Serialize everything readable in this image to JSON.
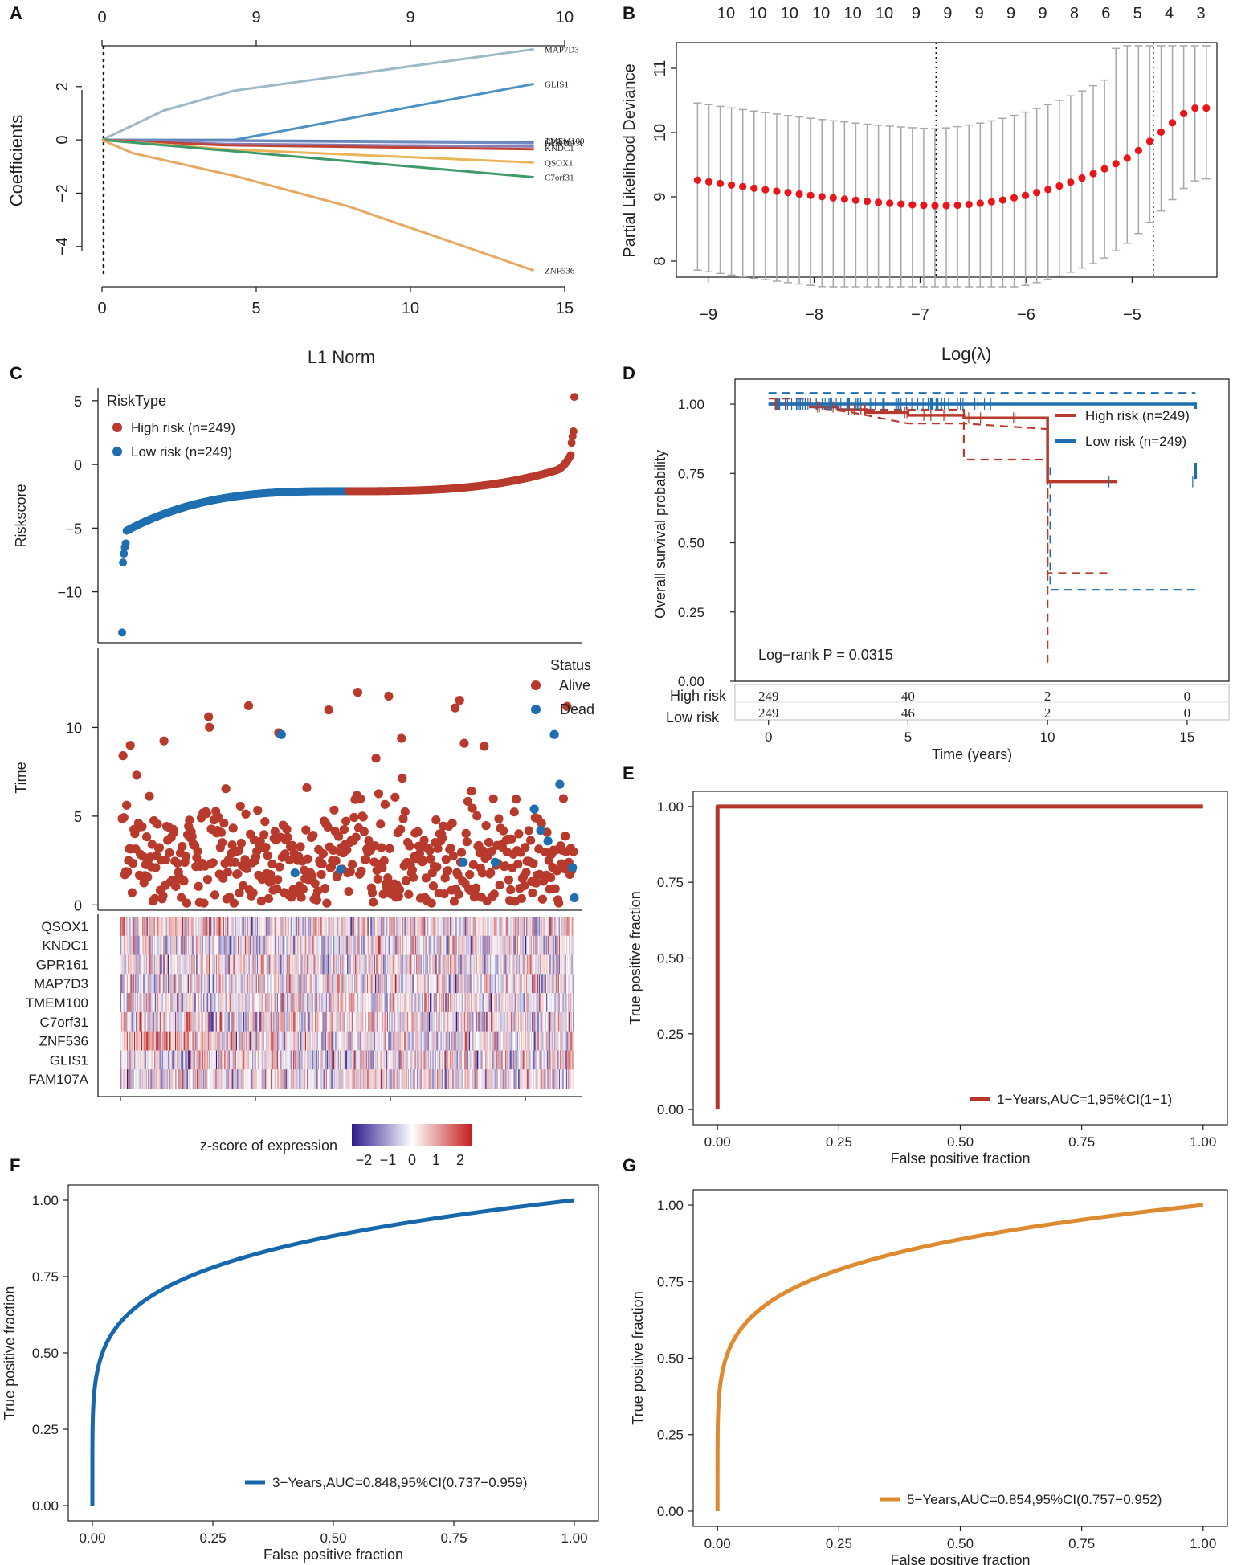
{
  "figure": {
    "panel_labels": [
      "A",
      "B",
      "C",
      "D",
      "E",
      "F",
      "G"
    ]
  },
  "colors": {
    "high_risk": "#b83a2c",
    "low_risk": "#1f6fb0",
    "auc1": "#b5362b",
    "auc3": "#1767aa",
    "auc5": "#dd8a30",
    "cv_point": "#e8161b",
    "cv_bar": "#a8a8a8",
    "heat_low": "#2b1b8c",
    "heat_mid": "#ffffff",
    "heat_high": "#c41e1e"
  },
  "chart_data": [
    {
      "panel": "A",
      "type": "line",
      "title": "",
      "xlabel": "L1 Norm",
      "ylabel": "Coefficients",
      "xlim": [
        0,
        15
      ],
      "ylim": [
        -5,
        3.5
      ],
      "x_ticks": [
        "0",
        "5",
        "10",
        "15"
      ],
      "y_ticks": [
        "−4",
        "−2",
        "0",
        "2"
      ],
      "top_ticks": [
        "0",
        "9",
        "9",
        "10"
      ],
      "series": [
        {
          "name": "MAP7D3",
          "color": "#9dbac6",
          "x": [
            0,
            2,
            4.3,
            14
          ],
          "y": [
            0,
            1.1,
            1.85,
            3.4
          ]
        },
        {
          "name": "GLIS1",
          "color": "#4f92c2",
          "x": [
            0,
            4.3,
            14
          ],
          "y": [
            0,
            0,
            2.1
          ]
        },
        {
          "name": "GPR161",
          "color": "#4a6fb0",
          "x": [
            0,
            14
          ],
          "y": [
            0,
            -0.08
          ]
        },
        {
          "name": "TMEM100",
          "color": "#6f8cc0",
          "x": [
            0,
            14
          ],
          "y": [
            0,
            -0.12
          ]
        },
        {
          "name": "FAM107A",
          "color": "#8b7db3",
          "x": [
            0,
            4,
            14
          ],
          "y": [
            0,
            -0.15,
            -0.25
          ]
        },
        {
          "name": "KNDC1",
          "color": "#c04436",
          "x": [
            0,
            4,
            14
          ],
          "y": [
            0,
            -0.2,
            -0.35
          ]
        },
        {
          "name": "QSOX1",
          "color": "#eab55a",
          "x": [
            0,
            4,
            14
          ],
          "y": [
            0,
            -0.35,
            -0.85
          ]
        },
        {
          "name": "C7orf31",
          "color": "#3e9a6a",
          "x": [
            0,
            4,
            14
          ],
          "y": [
            0,
            -0.4,
            -1.4
          ]
        },
        {
          "name": "ZNF536",
          "color": "#e6a862",
          "x": [
            0,
            1,
            4.3,
            8,
            14
          ],
          "y": [
            0,
            -0.5,
            -1.35,
            -2.5,
            -4.9
          ]
        }
      ],
      "line_labels": [
        {
          "text": "MAP7D3",
          "y": 3.4
        },
        {
          "text": "GLIS1",
          "y": 2.1
        },
        {
          "text": "TMEM100",
          "y": -0.02
        },
        {
          "text": "GPR161",
          "y": -0.07
        },
        {
          "text": "FAM107A",
          "y": -0.12
        },
        {
          "text": "KNDC1",
          "y": -0.3
        },
        {
          "text": "QSOX1",
          "y": -0.85
        },
        {
          "text": "C7orf31",
          "y": -1.4
        },
        {
          "text": "ZNF536",
          "y": -4.9
        }
      ],
      "vline_x": 0.05
    },
    {
      "panel": "B",
      "type": "scatter",
      "title": "",
      "xlabel": "Log(λ)",
      "ylabel": "Partial Likelihood Deviance",
      "xlim": [
        -9.3,
        -4.2
      ],
      "ylim": [
        7.75,
        11.4
      ],
      "x_ticks": [
        "−9",
        "−8",
        "−7",
        "−6",
        "−5"
      ],
      "y_ticks": [
        "8",
        "9",
        "10",
        "11"
      ],
      "top_ticks": [
        "10",
        "10",
        "10",
        "10",
        "10",
        "10",
        "9",
        "9",
        "9",
        "9",
        "9",
        "8",
        "6",
        "5",
        "4",
        "3"
      ],
      "n_points": 46,
      "log_lambda_range": [
        -9.1,
        -4.3
      ],
      "min_log_lambda": -6.85,
      "min_deviance": 8.86,
      "lambda_1se": -4.8,
      "vlines": [
        -6.85,
        -4.8
      ]
    },
    {
      "panel": "C-top",
      "type": "scatter",
      "title": "",
      "xlabel": "",
      "ylabel": "Riskscore",
      "ylim": [
        -14,
        6
      ],
      "y_ticks": [
        "5",
        "0",
        "−5",
        "−10"
      ],
      "legend_title": "RiskType",
      "legend": [
        "High risk (n=249)",
        "Low risk (n=249)"
      ],
      "n": 498,
      "min_score": -13.2,
      "max_score": 5.3,
      "cutoff_index": 249
    },
    {
      "panel": "C-mid",
      "type": "scatter",
      "title": "",
      "xlabel": "",
      "ylabel": "Time",
      "ylim": [
        -0.3,
        14.5
      ],
      "y_ticks": [
        "0",
        "5",
        "10"
      ],
      "legend_title": "Status",
      "legend": [
        "Alive",
        "Dead"
      ],
      "n": 498,
      "dead_points": [
        {
          "i": 175,
          "t": 9.6
        },
        {
          "i": 190,
          "t": 1.8
        },
        {
          "i": 240,
          "t": 2.0
        },
        {
          "i": 375,
          "t": 2.4
        },
        {
          "i": 410,
          "t": 2.4
        },
        {
          "i": 453,
          "t": 5.4
        },
        {
          "i": 460,
          "t": 4.2
        },
        {
          "i": 468,
          "t": 3.6
        },
        {
          "i": 475,
          "t": 9.6
        },
        {
          "i": 481,
          "t": 6.8
        },
        {
          "i": 495,
          "t": 2.1
        },
        {
          "i": 497,
          "t": 0.4
        }
      ]
    },
    {
      "panel": "C-heatmap",
      "type": "heatmap",
      "genes": [
        "QSOX1",
        "KNDC1",
        "GPR161",
        "MAP7D3",
        "TMEM100",
        "C7orf31",
        "ZNF536",
        "GLIS1",
        "FAM107A"
      ],
      "legend_title": "z-score of expression",
      "scale_labels": [
        "−2",
        "−1",
        "0",
        "1",
        "2"
      ],
      "scale_range": [
        -2.5,
        2.5
      ],
      "n_samples": 498
    },
    {
      "panel": "D",
      "type": "line",
      "title": "",
      "xlabel": "Time (years)",
      "ylabel": "Overall survival probability",
      "xlim": [
        -1.2,
        16.5
      ],
      "ylim": [
        0,
        1.09
      ],
      "x_ticks": [
        "0",
        "5",
        "10",
        "15"
      ],
      "y_ticks": [
        "0.00",
        "0.25",
        "0.50",
        "0.75",
        "1.00"
      ],
      "annotation": "Log−rank P = 0.0315",
      "series": [
        {
          "name": "High risk (n=249)",
          "x": [
            0,
            1.5,
            2.5,
            3.5,
            5,
            7,
            10,
            12.5
          ],
          "y": [
            1.0,
            0.99,
            0.98,
            0.97,
            0.96,
            0.95,
            0.72,
            0.72
          ]
        },
        {
          "name": "Low risk (n=249)",
          "x": [
            0,
            10,
            15.3
          ],
          "y": [
            1.0,
            1.0,
            0.73
          ]
        }
      ],
      "risk_table": {
        "rows": [
          "High risk",
          "Low risk"
        ],
        "times": [
          "0",
          "5",
          "10",
          "15"
        ],
        "high": [
          "249",
          "40",
          "2",
          "0"
        ],
        "low": [
          "249",
          "46",
          "2",
          "0"
        ]
      }
    },
    {
      "panel": "E",
      "type": "line",
      "title": "",
      "xlabel": "False positive fraction",
      "ylabel": "True positive fraction",
      "xlim": [
        -0.05,
        1.05
      ],
      "ylim": [
        -0.05,
        1.05
      ],
      "x_ticks": [
        "0.00",
        "0.25",
        "0.50",
        "0.75",
        "1.00"
      ],
      "y_ticks": [
        "0.00",
        "0.25",
        "0.50",
        "0.75",
        "1.00"
      ],
      "legend": "1−Years,AUC=1,95%CI(1−1)",
      "auc": 1.0,
      "x": [
        0,
        0,
        1
      ],
      "y": [
        0,
        1,
        1
      ]
    },
    {
      "panel": "F",
      "type": "line",
      "title": "",
      "xlabel": "False positive fraction",
      "ylabel": "True positive fraction",
      "xlim": [
        -0.05,
        1.05
      ],
      "ylim": [
        -0.05,
        1.05
      ],
      "x_ticks": [
        "0.00",
        "0.25",
        "0.50",
        "0.75",
        "1.00"
      ],
      "y_ticks": [
        "0.00",
        "0.25",
        "0.50",
        "0.75",
        "1.00"
      ],
      "legend": "3−Years,AUC=0.848,95%CI(0.737−0.959)",
      "auc": 0.848
    },
    {
      "panel": "G",
      "type": "line",
      "title": "",
      "xlabel": "False positive fraction",
      "ylabel": "True positive fraction",
      "xlim": [
        -0.05,
        1.05
      ],
      "ylim": [
        -0.05,
        1.05
      ],
      "x_ticks": [
        "0.00",
        "0.25",
        "0.50",
        "0.75",
        "1.00"
      ],
      "y_ticks": [
        "0.00",
        "0.25",
        "0.50",
        "0.75",
        "1.00"
      ],
      "legend": "5−Years,AUC=0.854,95%CI(0.757−0.952)",
      "auc": 0.854
    }
  ]
}
